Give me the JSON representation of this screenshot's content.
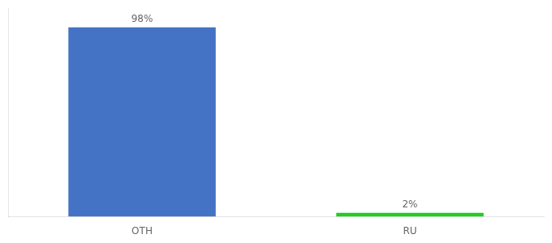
{
  "chart_data": {
    "type": "bar",
    "categories": [
      "OTH",
      "RU"
    ],
    "values": [
      98,
      2
    ],
    "colors": [
      "#4472C4",
      "#22CC22"
    ],
    "value_labels": [
      "98%",
      "2%"
    ],
    "data_labels": true,
    "ylim": [
      0,
      108
    ],
    "grid": false,
    "tick_labels": "x"
  }
}
